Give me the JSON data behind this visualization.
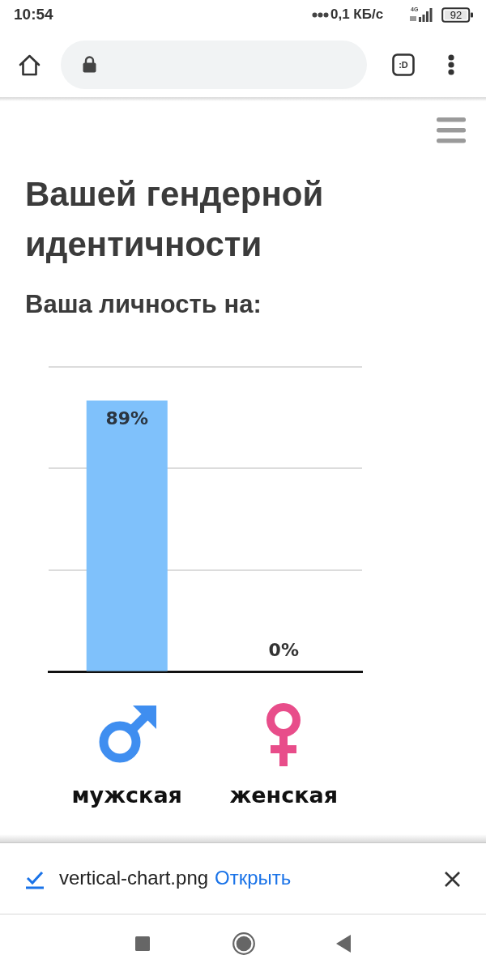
{
  "chart_data": {
    "type": "bar",
    "title": "Вашей гендерной идентичности",
    "subtitle": "Ваша личность на:",
    "categories": [
      "мужская",
      "женская"
    ],
    "values": [
      89,
      0
    ],
    "color": "#7fc1fb",
    "value_labels": [
      "89%",
      "0%"
    ],
    "ylim": [
      0,
      100
    ],
    "yticks": [
      {
        "value": 0,
        "label": null
      },
      {
        "value": 33.3,
        "label": null
      },
      {
        "value": 66.7,
        "label": null
      },
      {
        "value": 100,
        "label": null
      }
    ],
    "grid": "y",
    "tick_labels": "x",
    "annotations": [
      "10:54",
      "0,1 КБ/с",
      "4G",
      "92",
      ":D",
      "vertical-chart.png",
      "Открыть"
    ]
  }
}
